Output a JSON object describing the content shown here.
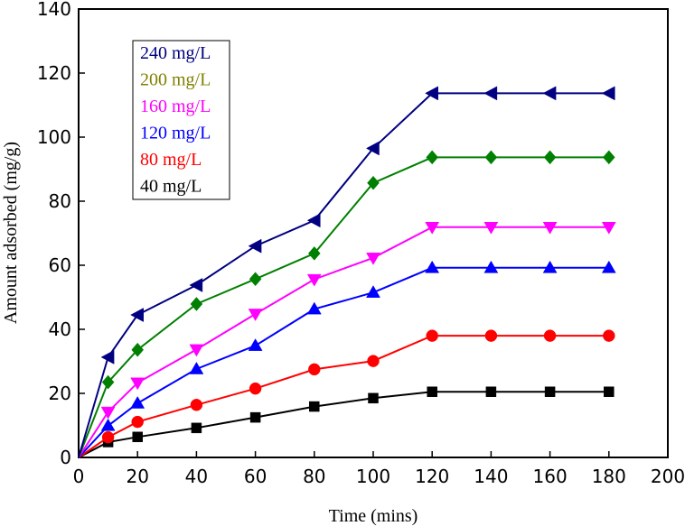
{
  "chart_data": {
    "type": "line",
    "title": "",
    "xlabel": "Time (mins)",
    "ylabel": "Amount adsorbed (mg/g)",
    "xlim": [
      0,
      200
    ],
    "ylim": [
      0,
      140
    ],
    "xticks": [
      0,
      20,
      40,
      60,
      80,
      100,
      120,
      140,
      160,
      180,
      200
    ],
    "yticks": [
      0,
      20,
      40,
      60,
      80,
      100,
      120,
      140
    ],
    "grid": false,
    "legend_position": "top-left",
    "x": [
      0,
      10,
      20,
      40,
      60,
      80,
      100,
      120,
      140,
      160,
      180
    ],
    "series": [
      {
        "name": "240 mg/L",
        "color": "#000080",
        "marker": "triangle-left",
        "values": [
          0,
          31.3,
          44.5,
          53.8,
          66.0,
          74.0,
          96.5,
          113.7,
          113.7,
          113.7,
          113.7
        ]
      },
      {
        "name": "200 mg/L",
        "color": "#808000",
        "line_color": "#008000",
        "marker_color": "#008000",
        "marker": "diamond",
        "values": [
          0,
          23.5,
          33.6,
          47.9,
          55.7,
          63.7,
          85.7,
          93.7,
          93.7,
          93.7,
          93.7
        ]
      },
      {
        "name": "160 mg/L",
        "color": "#ff00ff",
        "marker": "triangle-down",
        "values": [
          0,
          14.2,
          23.3,
          33.7,
          44.8,
          55.6,
          62.3,
          71.9,
          71.9,
          71.9,
          71.9
        ]
      },
      {
        "name": "120 mg/L",
        "color": "#0000ff",
        "marker": "triangle-up",
        "values": [
          0,
          9.9,
          16.9,
          27.6,
          34.9,
          46.3,
          51.5,
          59.2,
          59.2,
          59.2,
          59.2
        ]
      },
      {
        "name": "80 mg/L",
        "color": "#ff0000",
        "marker": "circle",
        "values": [
          0,
          6.3,
          11.1,
          16.4,
          21.5,
          27.5,
          30.1,
          38.0,
          38.0,
          38.0,
          38.0
        ]
      },
      {
        "name": "40 mg/L",
        "color": "#000000",
        "marker": "square",
        "values": [
          0,
          4.8,
          6.4,
          9.2,
          12.5,
          15.9,
          18.5,
          20.5,
          20.5,
          20.5,
          20.5
        ]
      }
    ]
  }
}
